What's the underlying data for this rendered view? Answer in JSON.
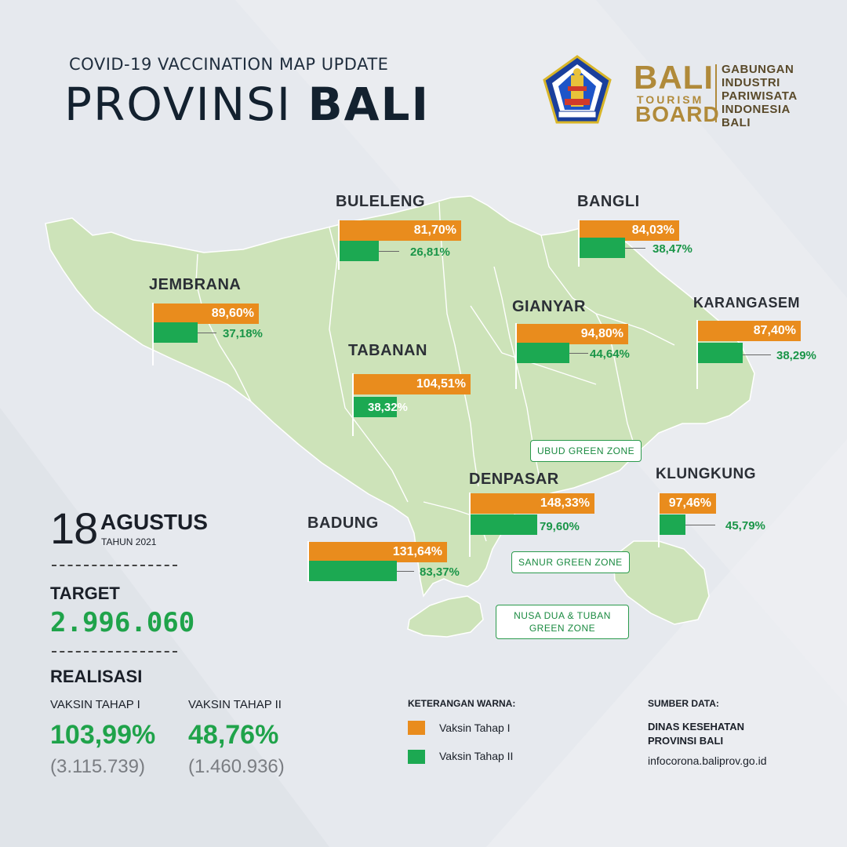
{
  "header": {
    "subtitle": "COVID-19 VACCINATION MAP UPDATE",
    "title_light": "PROVINSI",
    "title_bold": "BALI"
  },
  "partner_logo": {
    "bali": "BALI",
    "tourism": "TOURISM",
    "board": "BOARD",
    "right_lines": [
      "GABUNGAN",
      "INDUSTRI",
      "PARIWISATA",
      "INDONESIA",
      "BALI"
    ]
  },
  "regencies": [
    {
      "name": "BULELENG",
      "tahap1": "81,70%",
      "tahap2": "26,81%",
      "tahap1_value": 81.7,
      "tahap2_value": 26.81
    },
    {
      "name": "BANGLI",
      "tahap1": "84,03%",
      "tahap2": "38,47%",
      "tahap1_value": 84.03,
      "tahap2_value": 38.47
    },
    {
      "name": "JEMBRANA",
      "tahap1": "89,60%",
      "tahap2": "37,18%",
      "tahap1_value": 89.6,
      "tahap2_value": 37.18
    },
    {
      "name": "GIANYAR",
      "tahap1": "94,80%",
      "tahap2": "44,64%",
      "tahap1_value": 94.8,
      "tahap2_value": 44.64
    },
    {
      "name": "KARANGASEM",
      "tahap1": "87,40%",
      "tahap2": "38,29%",
      "tahap1_value": 87.4,
      "tahap2_value": 38.29
    },
    {
      "name": "TABANAN",
      "tahap1": "104,51%",
      "tahap2": "38,32%",
      "tahap1_value": 104.51,
      "tahap2_value": 38.32
    },
    {
      "name": "DENPASAR",
      "tahap1": "148,33%",
      "tahap2": "79,60%",
      "tahap1_value": 148.33,
      "tahap2_value": 79.6
    },
    {
      "name": "KLUNGKUNG",
      "tahap1": "97,46%",
      "tahap2": "45,79%",
      "tahap1_value": 97.46,
      "tahap2_value": 45.79
    },
    {
      "name": "BADUNG",
      "tahap1": "131,64%",
      "tahap2": "83,37%",
      "tahap1_value": 131.64,
      "tahap2_value": 83.37
    }
  ],
  "zones": {
    "ubud": "UBUD GREEN ZONE",
    "sanur": "SANUR GREEN ZONE",
    "nusadua_1": "NUSA DUA & TUBAN",
    "nusadua_2": "GREEN ZONE"
  },
  "date": {
    "day": "18",
    "month": "AGUSTUS",
    "year": "TAHUN 2021"
  },
  "target": {
    "label": "TARGET",
    "value": "2.996.060"
  },
  "realisasi": {
    "label": "REALISASI",
    "tahap1": {
      "label": "VAKSIN TAHAP I",
      "percent": "103,99%",
      "count": "(3.115.739)"
    },
    "tahap2": {
      "label": "VAKSIN TAHAP II",
      "percent": "48,76%",
      "count": "(1.460.936)"
    }
  },
  "legend": {
    "title": "KETERANGAN WARNA:",
    "tahap1": "Vaksin Tahap I",
    "tahap2": "Vaksin Tahap II"
  },
  "source": {
    "title": "SUMBER DATA:",
    "org_line1": "DINAS KESEHATAN",
    "org_line2": "PROVINSI BALI",
    "url": "infocorona.baliprov.go.id"
  },
  "colors": {
    "tahap1": "#e98c1d",
    "tahap2": "#1ca952",
    "map_fill": "#cde3b9",
    "accent_green": "#1fa34a"
  }
}
